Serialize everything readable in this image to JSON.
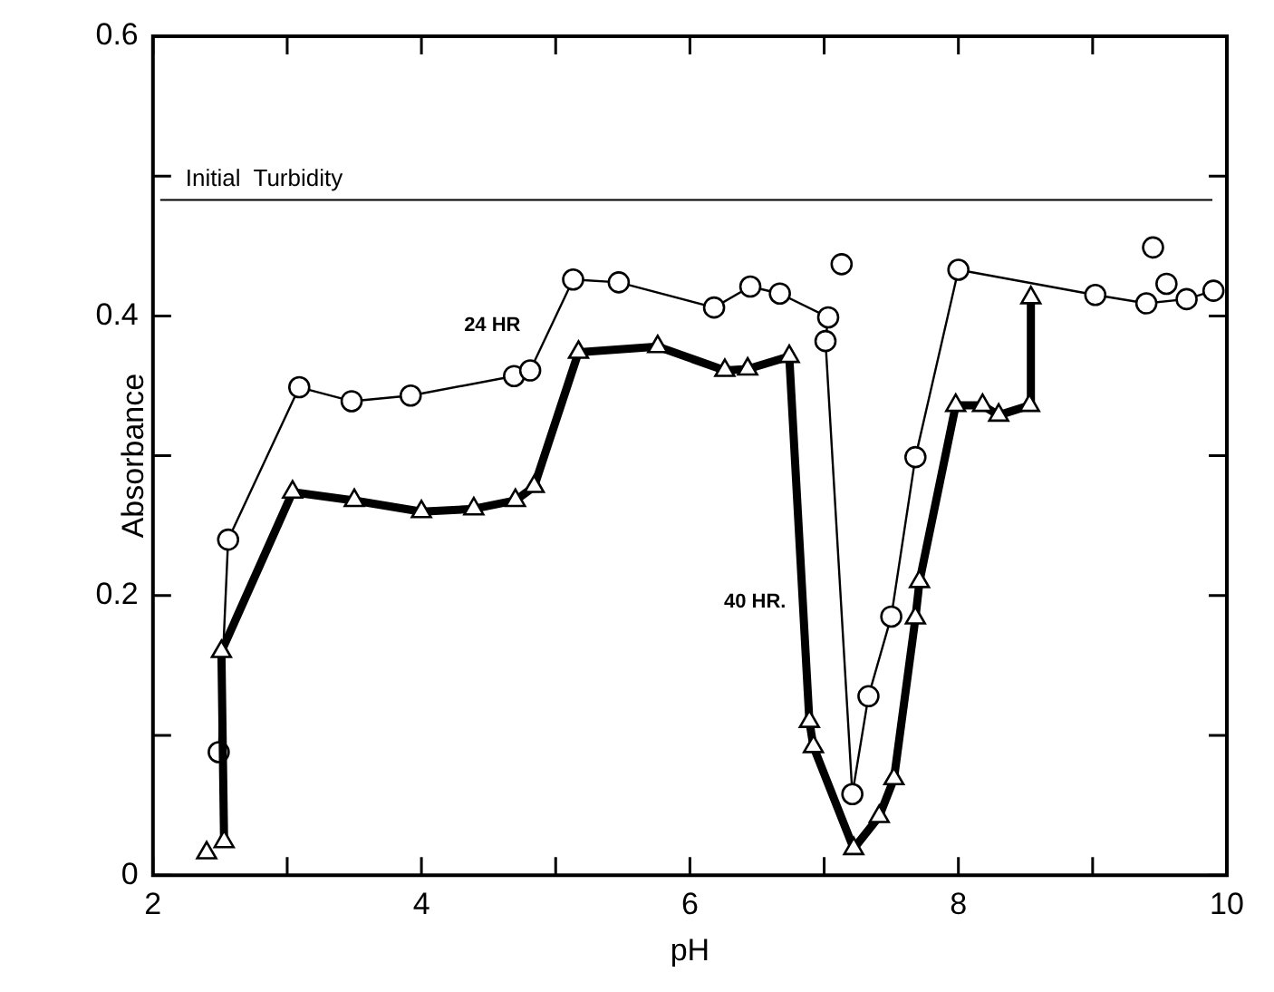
{
  "chart_data": {
    "type": "line",
    "xlabel": "pH",
    "ylabel": "Absorbance",
    "xlim": [
      2,
      10
    ],
    "ylim": [
      0,
      0.6
    ],
    "xticks": [
      2,
      {
        "value": 3,
        "label": null
      },
      4,
      {
        "value": 5,
        "label": null
      },
      6,
      {
        "value": 7,
        "label": null
      },
      8,
      {
        "value": 9,
        "label": null
      },
      10
    ],
    "yticks": [
      0,
      {
        "value": 0.1,
        "label": null
      },
      0.2,
      {
        "value": 0.3,
        "label": null
      },
      0.4,
      {
        "value": 0.5,
        "label": null
      },
      0.6
    ],
    "legend": false,
    "ref_lines": [
      {
        "axis": "y",
        "value": 0.483,
        "label": "Initial  Turbidity",
        "color": "#000000"
      }
    ],
    "series": [
      {
        "name": "24 HR",
        "type": "line",
        "marker": "circle",
        "color": "#000000",
        "x": [
          2.49,
          2.56,
          3.09,
          3.48,
          3.92,
          4.69,
          4.81,
          5.13,
          5.47,
          6.18,
          6.45,
          6.67,
          7.03,
          7.01,
          7.21,
          7.33,
          7.5,
          7.68,
          8.0,
          9.02,
          9.4,
          9.7,
          9.9
        ],
        "values": [
          0.088,
          0.24,
          0.349,
          0.339,
          0.343,
          0.357,
          0.361,
          0.426,
          0.424,
          0.406,
          0.421,
          0.416,
          0.399,
          0.382,
          0.058,
          0.128,
          0.185,
          0.299,
          0.433,
          0.415,
          0.409,
          0.412,
          0.418
        ]
      },
      {
        "name": "40 HR.",
        "type": "line",
        "marker": "triangle",
        "color": "#000000",
        "x": [
          2.53,
          2.51,
          3.04,
          3.5,
          4.0,
          4.39,
          4.7,
          4.84,
          5.17,
          5.76,
          6.26,
          6.43,
          6.74,
          6.89,
          6.92,
          7.22,
          7.41,
          7.52,
          7.68,
          7.71,
          7.98,
          8.18,
          8.3,
          8.53,
          8.54
        ],
        "values": [
          0.024,
          0.16,
          0.274,
          0.268,
          0.26,
          0.262,
          0.268,
          0.278,
          0.374,
          0.378,
          0.361,
          0.362,
          0.371,
          0.11,
          0.092,
          0.019,
          0.042,
          0.069,
          0.184,
          0.21,
          0.336,
          0.336,
          0.329,
          0.336,
          0.413
        ]
      },
      {
        "type": "scatter",
        "marker": "circle",
        "color": "#000000",
        "x": [
          7.13,
          9.45,
          9.55
        ],
        "values": [
          0.437,
          0.449,
          0.423
        ]
      },
      {
        "type": "scatter",
        "marker": "triangle",
        "color": "#000000",
        "x": [
          2.4
        ],
        "values": [
          0.016
        ]
      }
    ]
  }
}
